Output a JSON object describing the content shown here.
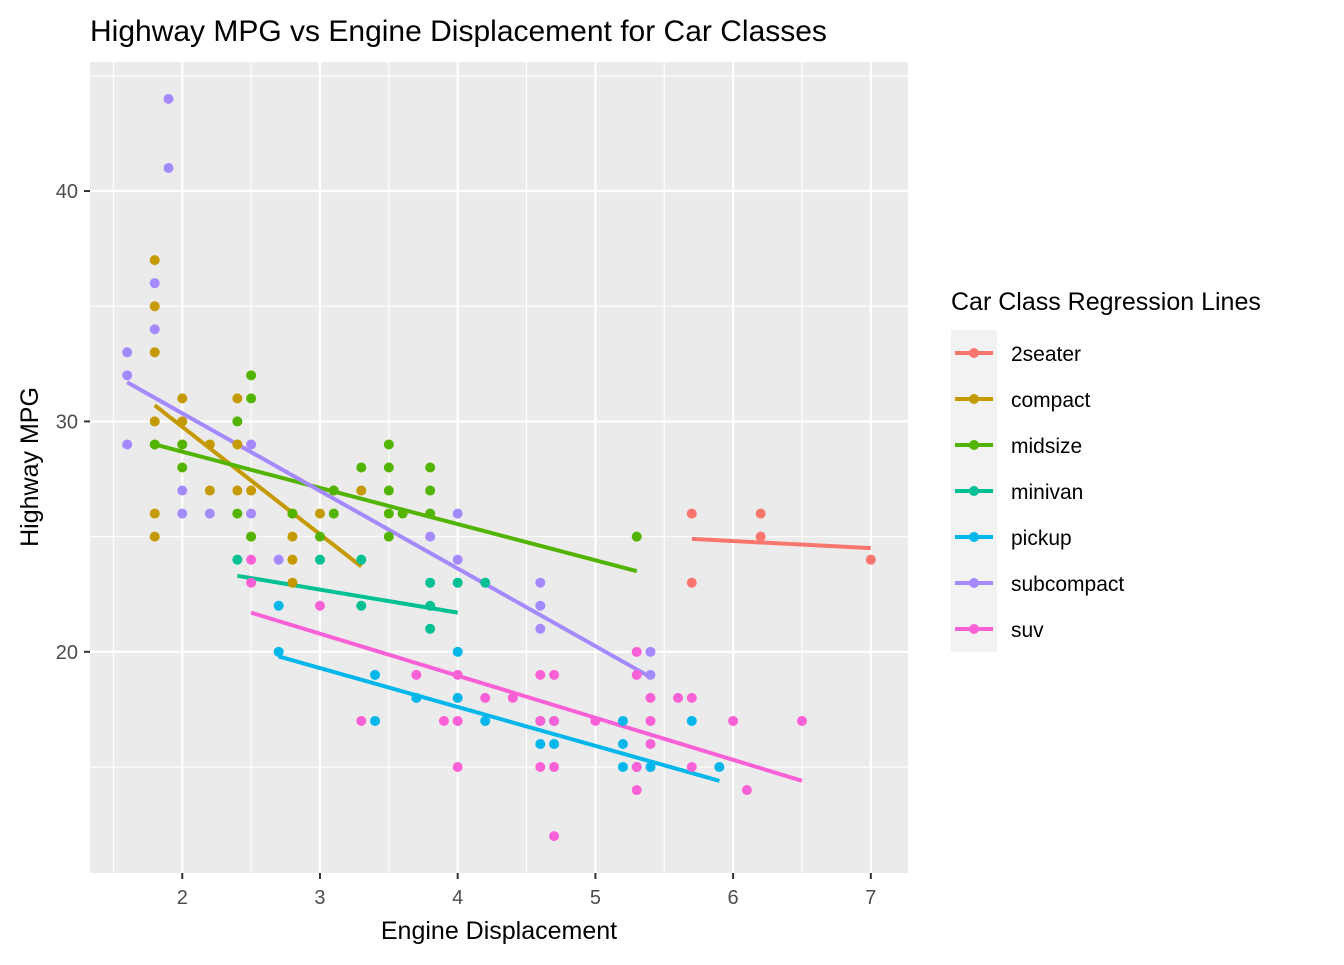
{
  "chart_data": {
    "type": "scatter",
    "title": "Highway MPG vs Engine Displacement for Car Classes",
    "xlabel": "Engine Displacement",
    "ylabel": "Highway MPG",
    "xlim": [
      1.33,
      7.27
    ],
    "ylim": [
      10.4,
      45.6
    ],
    "x_ticks": [
      2,
      3,
      4,
      5,
      6,
      7
    ],
    "y_ticks": [
      20,
      30,
      40
    ],
    "grid": true,
    "legend": {
      "title": "Car Class Regression Lines",
      "position": "right"
    },
    "series": [
      {
        "name": "2seater",
        "color": "#F8766D",
        "points": [
          [
            5.7,
            26
          ],
          [
            5.7,
            23
          ],
          [
            6.2,
            26
          ],
          [
            6.2,
            25
          ],
          [
            7.0,
            24
          ]
        ],
        "fit": [
          [
            5.7,
            24.9
          ],
          [
            7.0,
            24.5
          ]
        ]
      },
      {
        "name": "compact",
        "color": "#C49A00",
        "points": [
          [
            1.8,
            37
          ],
          [
            1.8,
            35
          ],
          [
            1.8,
            33
          ],
          [
            1.8,
            30
          ],
          [
            1.8,
            26
          ],
          [
            1.8,
            25
          ],
          [
            2.0,
            31
          ],
          [
            2.0,
            30
          ],
          [
            2.2,
            29
          ],
          [
            2.2,
            27
          ],
          [
            2.4,
            31
          ],
          [
            2.4,
            29
          ],
          [
            2.4,
            27
          ],
          [
            2.5,
            27
          ],
          [
            2.5,
            25
          ],
          [
            2.8,
            26
          ],
          [
            2.8,
            25
          ],
          [
            2.8,
            24
          ],
          [
            2.8,
            23
          ],
          [
            3.0,
            26
          ],
          [
            3.1,
            27
          ],
          [
            3.3,
            27
          ]
        ],
        "fit": [
          [
            1.8,
            30.7
          ],
          [
            3.3,
            23.7
          ]
        ]
      },
      {
        "name": "midsize",
        "color": "#53B400",
        "points": [
          [
            1.8,
            29
          ],
          [
            2.0,
            29
          ],
          [
            2.0,
            28
          ],
          [
            2.4,
            30
          ],
          [
            2.4,
            26
          ],
          [
            2.5,
            32
          ],
          [
            2.5,
            31
          ],
          [
            2.5,
            25
          ],
          [
            2.8,
            26
          ],
          [
            3.0,
            25
          ],
          [
            3.1,
            26
          ],
          [
            3.1,
            27
          ],
          [
            3.3,
            28
          ],
          [
            3.5,
            29
          ],
          [
            3.5,
            28
          ],
          [
            3.5,
            27
          ],
          [
            3.5,
            26
          ],
          [
            3.5,
            25
          ],
          [
            3.6,
            26
          ],
          [
            3.8,
            28
          ],
          [
            3.8,
            27
          ],
          [
            3.8,
            26
          ],
          [
            5.3,
            25
          ]
        ],
        "fit": [
          [
            1.8,
            29.0
          ],
          [
            5.3,
            23.5
          ]
        ]
      },
      {
        "name": "minivan",
        "color": "#00C094",
        "points": [
          [
            2.4,
            24
          ],
          [
            3.0,
            24
          ],
          [
            3.3,
            24
          ],
          [
            3.3,
            22
          ],
          [
            3.8,
            23
          ],
          [
            3.8,
            22
          ],
          [
            3.8,
            21
          ],
          [
            4.0,
            23
          ],
          [
            4.2,
            23
          ]
        ],
        "fit": [
          [
            2.4,
            23.3
          ],
          [
            4.0,
            21.7
          ]
        ]
      },
      {
        "name": "pickup",
        "color": "#00B6EB",
        "points": [
          [
            2.7,
            22
          ],
          [
            2.7,
            20
          ],
          [
            3.4,
            19
          ],
          [
            3.4,
            17
          ],
          [
            3.7,
            18
          ],
          [
            4.0,
            20
          ],
          [
            4.0,
            18
          ],
          [
            4.2,
            17
          ],
          [
            4.6,
            17
          ],
          [
            4.6,
            16
          ],
          [
            4.7,
            17
          ],
          [
            4.7,
            16
          ],
          [
            5.2,
            17
          ],
          [
            5.2,
            16
          ],
          [
            5.2,
            15
          ],
          [
            5.3,
            15
          ],
          [
            5.4,
            15
          ],
          [
            5.7,
            17
          ],
          [
            5.9,
            15
          ]
        ],
        "fit": [
          [
            2.7,
            19.8
          ],
          [
            5.9,
            14.4
          ]
        ]
      },
      {
        "name": "subcompact",
        "color": "#A58AFF",
        "points": [
          [
            1.6,
            33
          ],
          [
            1.6,
            32
          ],
          [
            1.6,
            29
          ],
          [
            1.8,
            36
          ],
          [
            1.8,
            34
          ],
          [
            1.9,
            44
          ],
          [
            1.9,
            41
          ],
          [
            2.0,
            27
          ],
          [
            2.0,
            26
          ],
          [
            2.2,
            26
          ],
          [
            2.5,
            29
          ],
          [
            2.5,
            26
          ],
          [
            2.7,
            24
          ],
          [
            3.8,
            25
          ],
          [
            4.0,
            26
          ],
          [
            4.0,
            24
          ],
          [
            4.6,
            23
          ],
          [
            4.6,
            22
          ],
          [
            4.6,
            21
          ],
          [
            5.4,
            20
          ],
          [
            5.4,
            19
          ]
        ],
        "fit": [
          [
            1.6,
            31.7
          ],
          [
            5.4,
            18.9
          ]
        ]
      },
      {
        "name": "suv",
        "color": "#FB61D7",
        "points": [
          [
            2.5,
            24
          ],
          [
            2.5,
            23
          ],
          [
            3.0,
            22
          ],
          [
            3.3,
            17
          ],
          [
            3.7,
            19
          ],
          [
            3.9,
            17
          ],
          [
            4.0,
            19
          ],
          [
            4.0,
            17
          ],
          [
            4.0,
            15
          ],
          [
            4.2,
            18
          ],
          [
            4.4,
            18
          ],
          [
            4.6,
            19
          ],
          [
            4.6,
            17
          ],
          [
            4.6,
            15
          ],
          [
            4.7,
            19
          ],
          [
            4.7,
            17
          ],
          [
            4.7,
            15
          ],
          [
            4.7,
            12
          ],
          [
            5.0,
            17
          ],
          [
            5.3,
            20
          ],
          [
            5.3,
            19
          ],
          [
            5.3,
            15
          ],
          [
            5.3,
            14
          ],
          [
            5.4,
            18
          ],
          [
            5.4,
            17
          ],
          [
            5.4,
            16
          ],
          [
            5.6,
            18
          ],
          [
            5.7,
            18
          ],
          [
            5.7,
            15
          ],
          [
            6.0,
            17
          ],
          [
            6.1,
            14
          ],
          [
            6.5,
            17
          ]
        ],
        "fit": [
          [
            2.5,
            21.7
          ],
          [
            6.5,
            14.4
          ]
        ]
      }
    ]
  }
}
